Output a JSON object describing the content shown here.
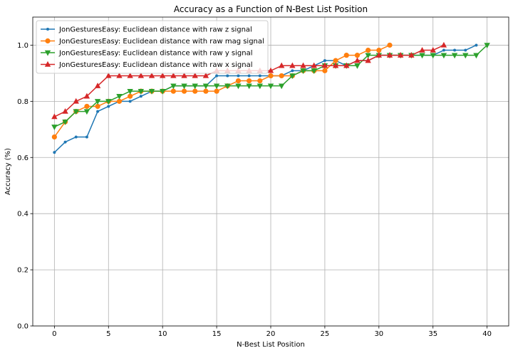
{
  "chart_data": {
    "type": "line",
    "title": "Accuracy as a Function of N-Best List Position",
    "xlabel": "N-Best List Position",
    "ylabel": "Accuracy (%)",
    "xlim": [
      -2,
      42
    ],
    "ylim": [
      0.0,
      1.1
    ],
    "xticks": [
      0,
      5,
      10,
      15,
      20,
      25,
      30,
      35,
      40
    ],
    "yticks": [
      0.0,
      0.2,
      0.4,
      0.6,
      0.8,
      1.0
    ],
    "xtick_labels": [
      "0",
      "5",
      "10",
      "15",
      "20",
      "25",
      "30",
      "35",
      "40"
    ],
    "ytick_labels": [
      "0.0",
      "0.2",
      "0.4",
      "0.6",
      "0.8",
      "1.0"
    ],
    "grid": true,
    "legend_position": "top-left",
    "series": [
      {
        "name": "JonGesturesEasy: Euclidean distance with raw z signal",
        "color": "#1f77b4",
        "marker": "point",
        "x": [
          0,
          1,
          2,
          3,
          4,
          5,
          6,
          7,
          8,
          9,
          10,
          11,
          12,
          13,
          14,
          15,
          16,
          17,
          18,
          19,
          20,
          21,
          22,
          23,
          24,
          25,
          26,
          27,
          28,
          29,
          30,
          31,
          32,
          33,
          34,
          35,
          36,
          37,
          38,
          39
        ],
        "values": [
          0.618,
          0.655,
          0.673,
          0.673,
          0.764,
          0.782,
          0.8,
          0.8,
          0.818,
          0.836,
          0.836,
          0.855,
          0.855,
          0.855,
          0.855,
          0.891,
          0.891,
          0.891,
          0.891,
          0.891,
          0.891,
          0.891,
          0.909,
          0.909,
          0.927,
          0.945,
          0.945,
          0.927,
          0.945,
          0.945,
          0.964,
          0.964,
          0.964,
          0.964,
          0.964,
          0.964,
          0.982,
          0.982,
          0.982,
          1.0
        ]
      },
      {
        "name": "JonGesturesEasy: Euclidean distance with raw mag signal",
        "color": "#ff7f0e",
        "marker": "circle",
        "x": [
          0,
          1,
          2,
          3,
          4,
          5,
          6,
          7,
          8,
          9,
          10,
          11,
          12,
          13,
          14,
          15,
          16,
          17,
          18,
          19,
          20,
          21,
          22,
          23,
          24,
          25,
          26,
          27,
          28,
          29,
          30,
          31
        ],
        "values": [
          0.673,
          0.727,
          0.764,
          0.782,
          0.782,
          0.8,
          0.8,
          0.818,
          0.836,
          0.836,
          0.836,
          0.836,
          0.836,
          0.836,
          0.836,
          0.836,
          0.855,
          0.873,
          0.873,
          0.873,
          0.891,
          0.891,
          0.891,
          0.909,
          0.909,
          0.909,
          0.945,
          0.964,
          0.964,
          0.982,
          0.982,
          1.0
        ]
      },
      {
        "name": "JonGesturesEasy: Euclidean distance with raw y signal",
        "color": "#2ca02c",
        "marker": "triangle-down",
        "x": [
          0,
          1,
          2,
          3,
          4,
          5,
          6,
          7,
          8,
          9,
          10,
          11,
          12,
          13,
          14,
          15,
          16,
          17,
          18,
          19,
          20,
          21,
          22,
          23,
          24,
          25,
          26,
          27,
          28,
          29,
          30,
          31,
          32,
          33,
          34,
          35,
          36,
          37,
          38,
          39,
          40
        ],
        "values": [
          0.709,
          0.727,
          0.764,
          0.764,
          0.8,
          0.8,
          0.818,
          0.836,
          0.836,
          0.836,
          0.836,
          0.855,
          0.855,
          0.855,
          0.855,
          0.855,
          0.855,
          0.855,
          0.855,
          0.855,
          0.855,
          0.855,
          0.891,
          0.909,
          0.909,
          0.927,
          0.927,
          0.927,
          0.927,
          0.964,
          0.964,
          0.964,
          0.964,
          0.964,
          0.964,
          0.964,
          0.964,
          0.964,
          0.964,
          0.964,
          1.0
        ]
      },
      {
        "name": "JonGesturesEasy: Euclidean distance with raw x signal",
        "color": "#d62728",
        "marker": "triangle-up",
        "x": [
          0,
          1,
          2,
          3,
          4,
          5,
          6,
          7,
          8,
          9,
          10,
          11,
          12,
          13,
          14,
          15,
          16,
          17,
          18,
          19,
          20,
          21,
          22,
          23,
          24,
          25,
          26,
          27,
          28,
          29,
          30,
          31,
          32,
          33,
          34,
          35,
          36
        ],
        "values": [
          0.745,
          0.764,
          0.8,
          0.818,
          0.855,
          0.891,
          0.891,
          0.891,
          0.891,
          0.891,
          0.891,
          0.891,
          0.891,
          0.891,
          0.891,
          0.909,
          0.909,
          0.909,
          0.909,
          0.909,
          0.909,
          0.927,
          0.927,
          0.927,
          0.927,
          0.927,
          0.927,
          0.927,
          0.945,
          0.945,
          0.964,
          0.964,
          0.964,
          0.964,
          0.982,
          0.982,
          1.0
        ]
      }
    ]
  }
}
